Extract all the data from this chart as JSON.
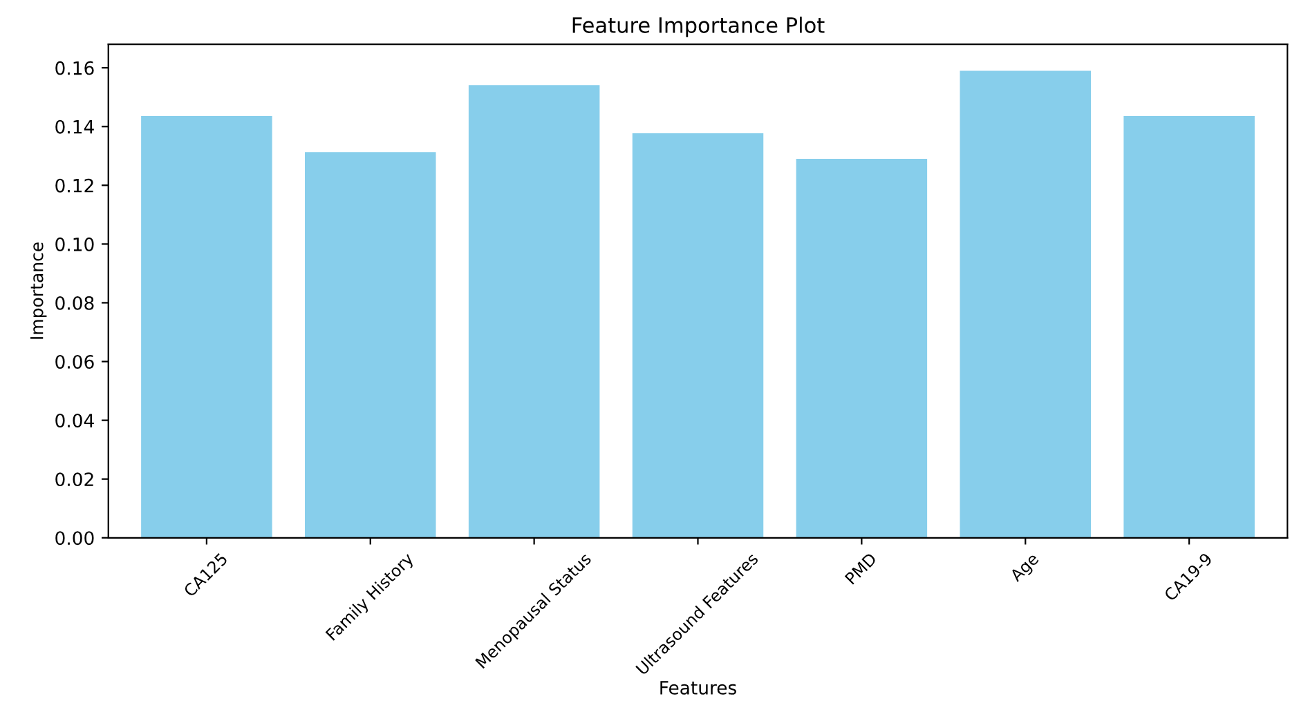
{
  "chart_data": {
    "type": "bar",
    "title": "Feature Importance Plot",
    "xlabel": "Features",
    "ylabel": "Importance",
    "categories": [
      "CA125",
      "Family History",
      "Menopausal Status",
      "Ultrasound Features",
      "PMD",
      "Age",
      "CA19-9"
    ],
    "values": [
      0.1436,
      0.1313,
      0.1541,
      0.1377,
      0.129,
      0.159,
      0.1436
    ],
    "color": "#87ceeb",
    "ylim": [
      0,
      0.168
    ],
    "yticks": [
      {
        "value": 0,
        "label": "0.00"
      },
      {
        "value": 0.02,
        "label": "0.02"
      },
      {
        "value": 0.04,
        "label": "0.04"
      },
      {
        "value": 0.06,
        "label": "0.06"
      },
      {
        "value": 0.08,
        "label": "0.08"
      },
      {
        "value": 0.1,
        "label": "0.10"
      },
      {
        "value": 0.12,
        "label": "0.12"
      },
      {
        "value": 0.14,
        "label": "0.14"
      },
      {
        "value": 0.16,
        "label": "0.16"
      }
    ],
    "grid": false,
    "legend": false
  }
}
